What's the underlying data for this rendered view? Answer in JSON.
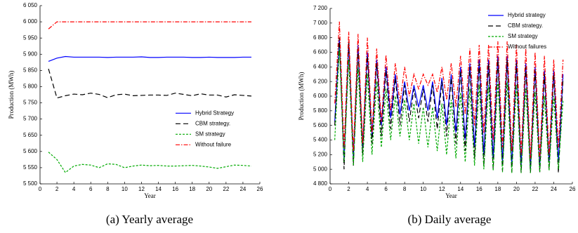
{
  "chart_data": [
    {
      "type": "line",
      "caption": "(a) Yearly average",
      "xlabel": "Year",
      "ylabel": "Production (MWh)",
      "x": [
        1,
        2,
        3,
        4,
        5,
        6,
        7,
        8,
        9,
        10,
        11,
        12,
        13,
        14,
        15,
        16,
        17,
        18,
        19,
        20,
        21,
        22,
        23,
        24,
        25
      ],
      "xlim": [
        0,
        26
      ],
      "xticks": [
        0,
        2,
        4,
        6,
        8,
        10,
        12,
        14,
        16,
        18,
        20,
        22,
        24,
        26
      ],
      "ylim": [
        5500,
        6050
      ],
      "yticks": [
        {
          "value": 5500,
          "label": "5 500"
        },
        {
          "value": 5550,
          "label": "5 550"
        },
        {
          "value": 5600,
          "label": "5 600"
        },
        {
          "value": 5650,
          "label": "5 650"
        },
        {
          "value": 5700,
          "label": "5 700"
        },
        {
          "value": 5750,
          "label": "5 750"
        },
        {
          "value": 5800,
          "label": "5 800"
        },
        {
          "value": 5850,
          "label": "5 850"
        },
        {
          "value": 5900,
          "label": "5 900"
        },
        {
          "value": 5950,
          "label": "5 950"
        },
        {
          "value": 6000,
          "label": "6 000"
        },
        {
          "value": 6050,
          "label": "6 050"
        }
      ],
      "legend": "center right",
      "series": [
        {
          "name": "Hybrid Strategy",
          "color": "#0000ff",
          "dash": "solid",
          "values": [
            5878,
            5888,
            5893,
            5891,
            5891,
            5891,
            5891,
            5890,
            5891,
            5891,
            5891,
            5892,
            5890,
            5890,
            5891,
            5891,
            5891,
            5890,
            5890,
            5891,
            5890,
            5890,
            5890,
            5891,
            5891
          ]
        },
        {
          "name": "CBM strategy.",
          "color": "#000000",
          "dash": "dashed",
          "values": [
            5855,
            5765,
            5772,
            5777,
            5775,
            5780,
            5776,
            5766,
            5775,
            5777,
            5772,
            5773,
            5774,
            5774,
            5773,
            5780,
            5776,
            5772,
            5778,
            5774,
            5774,
            5768,
            5775,
            5773,
            5771
          ]
        },
        {
          "name": "SM strategy",
          "color": "#00aa00",
          "dash": "dotted",
          "values": [
            5598,
            5575,
            5535,
            5555,
            5560,
            5558,
            5550,
            5562,
            5560,
            5550,
            5555,
            5558,
            5556,
            5557,
            5555,
            5555,
            5556,
            5557,
            5555,
            5552,
            5548,
            5553,
            5558,
            5557,
            5555
          ]
        },
        {
          "name": "Without failure",
          "color": "#ff0000",
          "dash": "dashdot",
          "values": [
            5978,
            6000,
            6000,
            6000,
            6000,
            6000,
            6000,
            6000,
            6000,
            6000,
            6000,
            6000,
            6000,
            6000,
            6000,
            6000,
            6000,
            6000,
            6000,
            6000,
            6000,
            6000,
            6000,
            6000,
            6000
          ]
        }
      ]
    },
    {
      "type": "line",
      "caption": "(b) Daily average",
      "xlabel": "Year",
      "ylabel": "Production (MWh)",
      "x": [
        0.5,
        1,
        1.5,
        2,
        2.5,
        3,
        3.5,
        4,
        4.5,
        5,
        5.5,
        6,
        6.5,
        7,
        7.5,
        8,
        8.5,
        9,
        9.5,
        10,
        10.5,
        11,
        11.5,
        12,
        12.5,
        13,
        13.5,
        14,
        14.5,
        15,
        15.5,
        16,
        16.5,
        17,
        17.5,
        18,
        18.5,
        19,
        19.5,
        20,
        20.5,
        21,
        21.5,
        22,
        22.5,
        23,
        23.5,
        24,
        24.5,
        25
      ],
      "xlim": [
        0,
        26
      ],
      "xticks": [
        0,
        2,
        4,
        6,
        8,
        10,
        12,
        14,
        16,
        18,
        20,
        22,
        24,
        26
      ],
      "ylim": [
        4800,
        7200
      ],
      "yticks": [
        {
          "value": 4800,
          "label": "4 800"
        },
        {
          "value": 5000,
          "label": "5 000"
        },
        {
          "value": 5200,
          "label": "5 200"
        },
        {
          "value": 5400,
          "label": "5 400"
        },
        {
          "value": 5600,
          "label": "5 600"
        },
        {
          "value": 5800,
          "label": "5 800"
        },
        {
          "value": 6000,
          "label": "6 000"
        },
        {
          "value": 6200,
          "label": "6 200"
        },
        {
          "value": 6400,
          "label": "6 400"
        },
        {
          "value": 6600,
          "label": "6 600"
        },
        {
          "value": 6800,
          "label": "6 800"
        },
        {
          "value": 7000,
          "label": "7 000"
        },
        {
          "value": 7200,
          "label": "7 200"
        }
      ],
      "legend": "upper right",
      "series": [
        {
          "name": "Hybrid strategy",
          "color": "#0000ff",
          "dash": "solid",
          "values": [
            5650,
            6800,
            5100,
            6750,
            5150,
            6700,
            5300,
            6600,
            5450,
            6500,
            5600,
            6400,
            5700,
            6300,
            5750,
            6200,
            5800,
            6150,
            5850,
            6150,
            5800,
            6200,
            5700,
            6250,
            5600,
            6300,
            5500,
            6400,
            5400,
            6450,
            5300,
            6500,
            5200,
            6500,
            5150,
            6550,
            5100,
            6550,
            5050,
            6500,
            5050,
            6450,
            5000,
            6400,
            5050,
            6350,
            5100,
            6350,
            5100,
            6300
          ]
        },
        {
          "name": "CBM strategy.",
          "color": "#000000",
          "dash": "dashed",
          "values": [
            5600,
            6800,
            5000,
            6750,
            5050,
            6650,
            5200,
            6550,
            5350,
            6450,
            5450,
            6350,
            5550,
            6250,
            5600,
            6150,
            5650,
            6100,
            5700,
            6100,
            5650,
            6150,
            5550,
            6200,
            5450,
            6250,
            5350,
            6350,
            5250,
            6400,
            5150,
            6450,
            5050,
            6450,
            5000,
            6500,
            4980,
            6500,
            4960,
            6450,
            4950,
            6400,
            4950,
            6350,
            4960,
            6300,
            5000,
            6300,
            4950,
            6250
          ]
        },
        {
          "name": "SM strategy",
          "color": "#00aa00",
          "dash": "dotted",
          "values": [
            5400,
            6650,
            5100,
            6500,
            5050,
            6400,
            5100,
            6300,
            5200,
            6200,
            5300,
            6100,
            5400,
            6000,
            5450,
            5950,
            5400,
            5900,
            5350,
            5850,
            5300,
            5850,
            5250,
            5900,
            5200,
            5950,
            5150,
            6050,
            5100,
            6100,
            5050,
            6150,
            5000,
            6150,
            4980,
            6200,
            4960,
            6200,
            4950,
            6150,
            4950,
            6100,
            4950,
            6050,
            4960,
            6000,
            4980,
            6000,
            5000,
            5950
          ]
        },
        {
          "name": "Without failures",
          "color": "#ff0000",
          "dash": "dashdot",
          "values": [
            5900,
            7020,
            5300,
            6880,
            5250,
            6850,
            5350,
            6800,
            5500,
            6650,
            5650,
            6560,
            5800,
            6450,
            5900,
            6400,
            6000,
            6300,
            6100,
            6300,
            6150,
            6300,
            6050,
            6400,
            5950,
            6450,
            5850,
            6550,
            5750,
            6650,
            5600,
            6700,
            5500,
            6700,
            5400,
            6750,
            5300,
            6750,
            5250,
            6700,
            5200,
            6650,
            5150,
            6600,
            5150,
            6550,
            5200,
            6500,
            5300,
            6500
          ]
        }
      ]
    }
  ]
}
